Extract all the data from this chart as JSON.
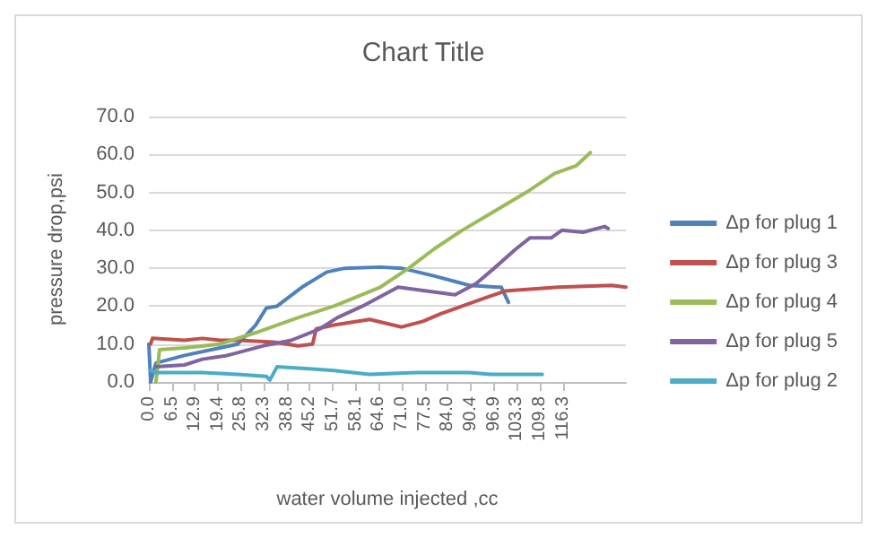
{
  "chart_data": {
    "type": "line",
    "title": "Chart Title",
    "xlabel": "water volume injected ,cc",
    "ylabel": "pressure drop,psi",
    "xlim": [
      0,
      134
    ],
    "xticks": [
      {
        "value": 0,
        "label": "0.0"
      },
      6.5,
      12.9,
      19.4,
      25.8,
      32.3,
      38.8,
      45.2,
      51.7,
      58.1,
      64.6,
      {
        "value": 71,
        "label": "71.0"
      },
      77.5,
      {
        "value": 84,
        "label": "84.0"
      },
      90.4,
      96.9,
      103.3,
      109.8,
      116.3
    ],
    "ylim": [
      0,
      70
    ],
    "yticks": [
      {
        "value": 0,
        "label": "0.0"
      },
      {
        "value": 10,
        "label": "10.0"
      },
      {
        "value": 20,
        "label": "20.0"
      },
      {
        "value": 30,
        "label": "30.0"
      },
      {
        "value": 40,
        "label": "40.0"
      },
      {
        "value": 50,
        "label": "50.0"
      },
      {
        "value": 60,
        "label": "60.0"
      },
      {
        "value": 70,
        "label": "70.0"
      }
    ],
    "grid": "y",
    "legend": "right",
    "marker": "none",
    "line_style": "solid",
    "series": [
      {
        "name": "Δp for plug 1",
        "color": "#4f81bd",
        "x": [
          0,
          0.5,
          2,
          10,
          20,
          25,
          30,
          33,
          36,
          43,
          50,
          55,
          65,
          71,
          80,
          90,
          98,
          99,
          101
        ],
        "values": [
          10,
          0,
          5,
          7,
          9,
          10,
          15,
          19.5,
          20,
          25,
          29,
          30,
          30.3,
          30,
          28,
          25.5,
          25,
          25,
          21
        ]
      },
      {
        "name": "Δp for plug 3",
        "color": "#c0504d",
        "x": [
          0.5,
          1,
          10,
          15,
          20,
          25,
          35,
          42,
          46,
          47,
          52,
          62,
          71,
          77,
          82,
          88,
          94,
          100,
          115,
          130,
          134
        ],
        "values": [
          10,
          11.5,
          11,
          11.5,
          11,
          11,
          10.5,
          9.5,
          10,
          14,
          15,
          16.5,
          14.5,
          16,
          18,
          20,
          22,
          24,
          25,
          25.5,
          25
        ]
      },
      {
        "name": "Δp for plug 4",
        "color": "#9bbb59",
        "x": [
          2,
          3,
          10,
          20,
          30,
          42,
          52,
          65,
          73,
          80,
          88,
          97,
          106,
          114,
          120,
          124
        ],
        "values": [
          0,
          8.5,
          9,
          10,
          13,
          17,
          20,
          25,
          30,
          35,
          40,
          45,
          50,
          55,
          57,
          60.5
        ]
      },
      {
        "name": "Δp for plug 5",
        "color": "#8064a2",
        "x": [
          2,
          10,
          15,
          22,
          32,
          40,
          48,
          53,
          60,
          70,
          78,
          86,
          92,
          97,
          103,
          107,
          113,
          116,
          122,
          128,
          129
        ],
        "values": [
          4,
          4.5,
          6,
          7,
          9.5,
          11,
          14,
          17,
          20,
          25,
          24,
          23,
          26,
          30,
          35,
          38,
          38,
          40,
          39.5,
          41,
          40.5
        ]
      },
      {
        "name": "Δp for plug 2",
        "color": "#4bacc6",
        "x": [
          0.5,
          2,
          15,
          25,
          33,
          34,
          36,
          45,
          52,
          62,
          75,
          90,
          96,
          105,
          110.5
        ],
        "values": [
          3,
          2.5,
          2.5,
          2,
          1.5,
          0.5,
          4,
          3.5,
          3,
          2,
          2.5,
          2.5,
          2,
          2,
          2
        ]
      }
    ]
  }
}
